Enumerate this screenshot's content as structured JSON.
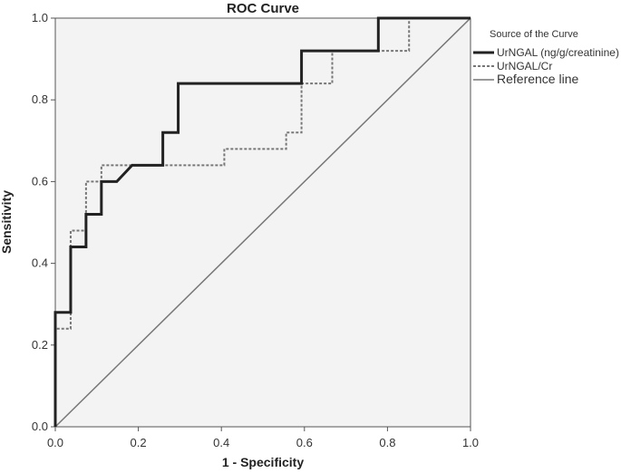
{
  "chart_data": {
    "type": "line",
    "title": "ROC Curve",
    "xlabel": "1 - Specificity",
    "ylabel": "Sensitivity",
    "xlim": [
      0,
      1
    ],
    "ylim": [
      0,
      1
    ],
    "x_ticks": [
      "0.0",
      "0.2",
      "0.4",
      "0.6",
      "0.8",
      "1.0"
    ],
    "y_ticks": [
      "0.0",
      "0.2",
      "0.4",
      "0.6",
      "0.8",
      "1.0"
    ],
    "grid": false,
    "legend": {
      "title": "Source of the Curve",
      "placement": "right"
    },
    "series": [
      {
        "name": "UrNGAL (ng/g/creatinine)",
        "style": "solid-thick",
        "color": "#222222",
        "points": [
          [
            0,
            0
          ],
          [
            0,
            0.28
          ],
          [
            0.037,
            0.28
          ],
          [
            0.037,
            0.44
          ],
          [
            0.074,
            0.44
          ],
          [
            0.074,
            0.52
          ],
          [
            0.111,
            0.52
          ],
          [
            0.111,
            0.6
          ],
          [
            0.148,
            0.6
          ],
          [
            0.185,
            0.64
          ],
          [
            0.259,
            0.64
          ],
          [
            0.259,
            0.72
          ],
          [
            0.296,
            0.72
          ],
          [
            0.296,
            0.84
          ],
          [
            0.593,
            0.84
          ],
          [
            0.593,
            0.92
          ],
          [
            0.778,
            0.92
          ],
          [
            0.778,
            1.0
          ],
          [
            1.0,
            1.0
          ]
        ]
      },
      {
        "name": "UrNGAL/Cr",
        "style": "dotted",
        "color": "#777777",
        "points": [
          [
            0,
            0
          ],
          [
            0,
            0.24
          ],
          [
            0.037,
            0.24
          ],
          [
            0.037,
            0.48
          ],
          [
            0.074,
            0.48
          ],
          [
            0.074,
            0.6
          ],
          [
            0.111,
            0.6
          ],
          [
            0.111,
            0.64
          ],
          [
            0.407,
            0.64
          ],
          [
            0.407,
            0.68
          ],
          [
            0.556,
            0.68
          ],
          [
            0.556,
            0.72
          ],
          [
            0.593,
            0.72
          ],
          [
            0.593,
            0.84
          ],
          [
            0.667,
            0.84
          ],
          [
            0.667,
            0.92
          ],
          [
            0.852,
            0.92
          ],
          [
            0.852,
            1.0
          ],
          [
            1.0,
            1.0
          ]
        ]
      },
      {
        "name": "Reference line",
        "style": "solid-thin",
        "color": "#777777",
        "points": [
          [
            0,
            0
          ],
          [
            1,
            1
          ]
        ]
      }
    ]
  }
}
